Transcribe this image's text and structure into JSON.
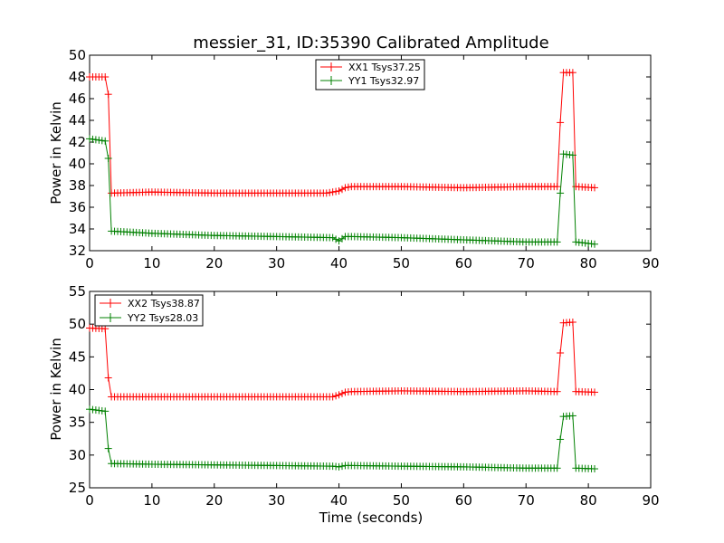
{
  "title": "messier_31, ID:35390 Calibrated Amplitude",
  "xlabel": "Time (seconds)",
  "chart_data": [
    {
      "type": "line",
      "ylabel": "Power in Kelvin",
      "xlabel": "",
      "xlim": [
        0,
        90
      ],
      "ylim": [
        32,
        50
      ],
      "xticks": [
        0,
        10,
        20,
        30,
        40,
        50,
        60,
        70,
        80,
        90
      ],
      "yticks": [
        32,
        34,
        36,
        38,
        40,
        42,
        44,
        46,
        48,
        50
      ],
      "legend_position": "upper-center",
      "series": [
        {
          "name": "XX1 Tsys37.25",
          "color": "#ff0000",
          "x": [
            0,
            2.5,
            3,
            3.5,
            10,
            20,
            30,
            38,
            40,
            41,
            42,
            50,
            60,
            70,
            75,
            75.5,
            76,
            77.5,
            78,
            81
          ],
          "y": [
            48,
            48,
            46.4,
            37.3,
            37.4,
            37.3,
            37.3,
            37.3,
            37.5,
            37.8,
            37.9,
            37.9,
            37.8,
            37.9,
            37.9,
            43.8,
            48.4,
            48.4,
            37.9,
            37.8
          ]
        },
        {
          "name": "YY1 Tsys32.97",
          "color": "#008000",
          "x": [
            0,
            2.5,
            3,
            3.5,
            10,
            20,
            30,
            39,
            40,
            41,
            42,
            50,
            60,
            70,
            75,
            75.5,
            76,
            77.5,
            78,
            81
          ],
          "y": [
            42.3,
            42.1,
            40.5,
            33.8,
            33.6,
            33.4,
            33.3,
            33.2,
            32.9,
            33.3,
            33.3,
            33.2,
            33.0,
            32.8,
            32.8,
            37.3,
            40.9,
            40.8,
            32.8,
            32.6
          ]
        }
      ]
    },
    {
      "type": "line",
      "ylabel": "Power in Kelvin",
      "xlabel": "Time (seconds)",
      "xlim": [
        0,
        90
      ],
      "ylim": [
        25,
        55
      ],
      "xticks": [
        0,
        10,
        20,
        30,
        40,
        50,
        60,
        70,
        80,
        90
      ],
      "yticks": [
        25,
        30,
        35,
        40,
        45,
        50,
        55
      ],
      "legend_position": "upper-left",
      "series": [
        {
          "name": "XX2 Tsys38.87",
          "color": "#ff0000",
          "x": [
            0,
            2.5,
            3,
            3.5,
            10,
            20,
            30,
            39,
            40,
            41,
            42,
            50,
            60,
            70,
            75,
            75.5,
            76,
            77.5,
            78,
            81
          ],
          "y": [
            49.4,
            49.3,
            41.8,
            38.9,
            38.9,
            38.9,
            38.9,
            38.9,
            39.2,
            39.6,
            39.7,
            39.8,
            39.7,
            39.8,
            39.7,
            45.6,
            50.2,
            50.3,
            39.7,
            39.6
          ]
        },
        {
          "name": "YY2 Tsys28.03",
          "color": "#008000",
          "x": [
            0,
            2.5,
            3,
            3.5,
            10,
            20,
            30,
            39,
            40,
            41,
            42,
            50,
            60,
            70,
            75,
            75.5,
            76,
            77.5,
            78,
            81
          ],
          "y": [
            37.0,
            36.7,
            31.0,
            28.7,
            28.6,
            28.5,
            28.4,
            28.3,
            28.2,
            28.4,
            28.4,
            28.3,
            28.2,
            28.0,
            28.0,
            32.4,
            35.9,
            36.0,
            28.0,
            27.9
          ]
        }
      ]
    }
  ]
}
